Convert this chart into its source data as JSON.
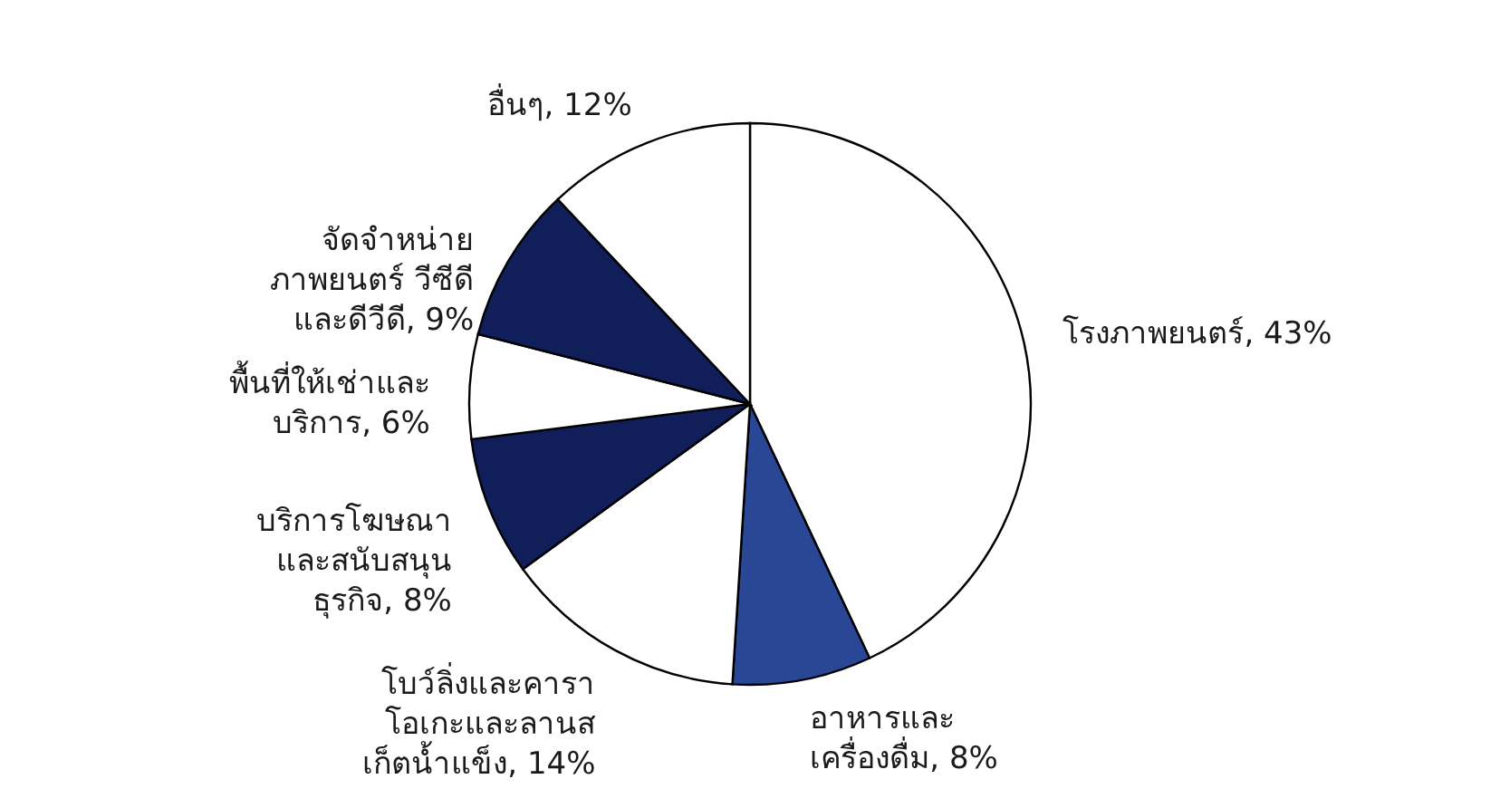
{
  "chart_data": {
    "type": "pie",
    "categories": [
      "โรงภาพยนตร์",
      "อาหารและ\nเครื่องดื่ม",
      "โบว์ลิ่งและคารา\nโอเกะและลานส\nเก็ตน้ำแข็ง",
      "บริการโฆษณา\nและสนับสนุน\nธุรกิจ",
      "พื้นที่ให้เช่าและ\nบริการ",
      "จัดจำหน่าย\nภาพยนตร์ วีซีดี\nและดีวีดี",
      "อื่นๆ"
    ],
    "values": [
      43,
      8,
      14,
      8,
      6,
      9,
      12
    ],
    "value_labels": [
      "43%",
      "8%",
      "14%",
      "8%",
      "6%",
      "9%",
      "12%"
    ],
    "colors": [
      "#ffffff",
      "#2a4796",
      "#ffffff",
      "#101e5a",
      "#ffffff",
      "#101e5a",
      "#ffffff"
    ],
    "legend": false
  }
}
